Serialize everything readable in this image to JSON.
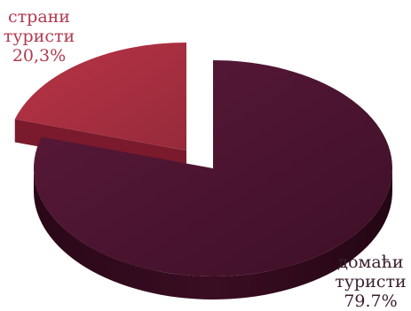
{
  "chart_data": {
    "type": "pie",
    "style": "3d-exploded",
    "slices": [
      {
        "name": "домаћи туристи",
        "value": 79.7,
        "label_line1": "домаћи",
        "label_line2": "туристи",
        "value_text": "79.7%",
        "color_top": "#4d1430",
        "color_side": "#2a0818"
      },
      {
        "name": "страни туристи",
        "value": 20.3,
        "label_line1": "страни",
        "label_line2": "туристи",
        "value_text": "20,3%",
        "color_top": "#a8303f",
        "color_side": "#5e1020"
      }
    ]
  }
}
